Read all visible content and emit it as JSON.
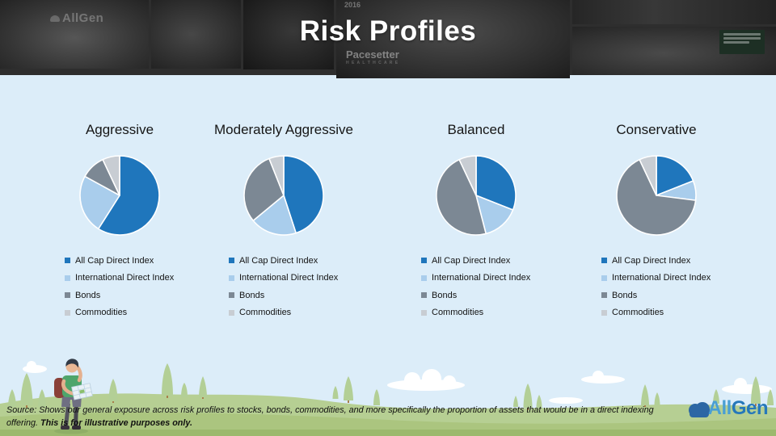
{
  "title": "Risk Profiles",
  "header": {
    "collage_texts": {
      "allgen_wall_sign": "AllGen",
      "year": "2016",
      "pacesetter": "Pacesetter"
    }
  },
  "legend_labels": [
    "All Cap Direct Index",
    "International Direct Index",
    "Bonds",
    "Commodities"
  ],
  "legend_colors": [
    "#1F76BC",
    "#A9CDEC",
    "#7C8894",
    "#C8CDD3"
  ],
  "chart_data": [
    {
      "type": "pie",
      "title": "Aggressive",
      "labels": [
        "All Cap Direct Index",
        "International Direct Index",
        "Bonds",
        "Commodities"
      ],
      "values": [
        59,
        24,
        10,
        7
      ],
      "colors": [
        "#1F76BC",
        "#A9CDEC",
        "#7C8894",
        "#C8CDD3"
      ],
      "start_angle_deg": 0,
      "legend_position": "bottom-left"
    },
    {
      "type": "pie",
      "title": "Moderately Aggressive",
      "labels": [
        "All Cap Direct Index",
        "International Direct Index",
        "Bonds",
        "Commodities"
      ],
      "values": [
        45,
        19,
        30,
        6
      ],
      "colors": [
        "#1F76BC",
        "#A9CDEC",
        "#7C8894",
        "#C8CDD3"
      ],
      "start_angle_deg": 0,
      "legend_position": "bottom-left"
    },
    {
      "type": "pie",
      "title": "Balanced",
      "labels": [
        "All Cap Direct Index",
        "International Direct Index",
        "Bonds",
        "Commodities"
      ],
      "values": [
        31,
        15,
        47,
        7
      ],
      "colors": [
        "#1F76BC",
        "#A9CDEC",
        "#7C8894",
        "#C8CDD3"
      ],
      "start_angle_deg": 0,
      "legend_position": "bottom-left"
    },
    {
      "type": "pie",
      "title": "Conservative",
      "labels": [
        "All Cap Direct Index",
        "International Direct Index",
        "Bonds",
        "Commodities"
      ],
      "values": [
        19,
        8,
        66,
        7
      ],
      "colors": [
        "#1F76BC",
        "#A9CDEC",
        "#7C8894",
        "#C8CDD3"
      ],
      "start_angle_deg": 0,
      "legend_position": "bottom-left"
    }
  ],
  "footer": {
    "source_line1": "Source: Shows our general exposure across risk profiles to stocks, bonds, commodities, and more specifically the proportion of assets that would be in a direct indexing",
    "source_line2_normal": "offering. ",
    "source_line2_bold": "This is for illustrative purposes only.",
    "logo_all": "All",
    "logo_gen": "Gen"
  }
}
